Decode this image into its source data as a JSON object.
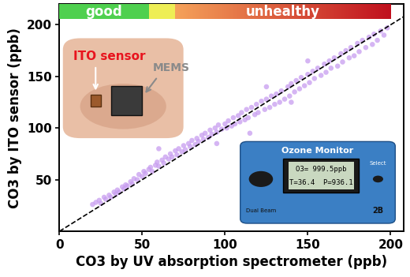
{
  "chart_data": {
    "type": "scatter",
    "x_label": "CO3 by UV absorption spectrometer (ppb)",
    "y_label": "CO3 by ITO sensor (ppb)",
    "xlim": [
      0,
      208
    ],
    "ylim": [
      0,
      220
    ],
    "xticks": [
      0,
      50,
      100,
      150,
      200
    ],
    "yticks": [
      50,
      100,
      150,
      200
    ],
    "color": "#c79cf0",
    "marker": "circle",
    "x": [
      20,
      22,
      24,
      25,
      27,
      28,
      30,
      31,
      33,
      34,
      35,
      36,
      38,
      39,
      40,
      41,
      43,
      44,
      45,
      47,
      48,
      50,
      51,
      52,
      54,
      55,
      56,
      58,
      59,
      60,
      62,
      63,
      64,
      66,
      67,
      68,
      70,
      71,
      72,
      74,
      75,
      76,
      78,
      79,
      80,
      82,
      83,
      84,
      86,
      87,
      88,
      90,
      91,
      92,
      94,
      95,
      96,
      98,
      100,
      101,
      102,
      104,
      105,
      106,
      108,
      109,
      110,
      112,
      113,
      114,
      116,
      118,
      119,
      120,
      122,
      124,
      125,
      127,
      128,
      130,
      131,
      133,
      134,
      136,
      138,
      139,
      140,
      142,
      143,
      145,
      146,
      148,
      150,
      151,
      153,
      154,
      156,
      158,
      160,
      161,
      163,
      164,
      166,
      168,
      170,
      171,
      173,
      175,
      176,
      178,
      180,
      181,
      183,
      185,
      187,
      189,
      190,
      192,
      194,
      196,
      198,
      60,
      95,
      125,
      115,
      150,
      140
    ],
    "y": [
      26,
      28,
      30,
      27,
      33,
      31,
      35,
      33,
      38,
      36,
      40,
      38,
      43,
      41,
      45,
      44,
      48,
      46,
      51,
      50,
      55,
      53,
      58,
      56,
      60,
      62,
      58,
      64,
      67,
      63,
      69,
      66,
      72,
      70,
      75,
      72,
      78,
      74,
      80,
      77,
      83,
      79,
      85,
      82,
      88,
      84,
      90,
      87,
      93,
      89,
      95,
      91,
      98,
      94,
      100,
      96,
      103,
      99,
      104,
      100,
      107,
      102,
      110,
      104,
      112,
      106,
      115,
      108,
      118,
      110,
      120,
      113,
      123,
      115,
      126,
      118,
      128,
      120,
      131,
      123,
      133,
      125,
      136,
      128,
      140,
      131,
      143,
      135,
      146,
      138,
      149,
      141,
      152,
      144,
      155,
      148,
      158,
      151,
      162,
      154,
      165,
      158,
      168,
      160,
      172,
      164,
      175,
      168,
      178,
      170,
      182,
      174,
      185,
      178,
      188,
      181,
      191,
      185,
      194,
      190,
      197,
      80,
      85,
      140,
      95,
      165,
      125
    ],
    "reference_line": {
      "x": [
        0,
        208
      ],
      "y": [
        0,
        208
      ],
      "line_style": "dashed",
      "color": "#000000"
    },
    "bands": [
      {
        "from": 0,
        "to": 54,
        "label": "good",
        "colors": [
          "#4fd04f"
        ]
      },
      {
        "from": 54,
        "to": 70,
        "colors": [
          "#eeee55"
        ]
      },
      {
        "from": 70,
        "to": 200,
        "label": "unhealthy",
        "colors": [
          "#f5a25a",
          "#c0101e"
        ]
      }
    ],
    "annotations": {
      "sensor_photo": {
        "ITO": "ITO sensor",
        "MEMS": "MEMS"
      },
      "monitor": {
        "title": "Ozone Monitor",
        "display": [
          "O3= 999.5ppb",
          "T=36.4  P=936.1"
        ],
        "left_button": "Dual Beam",
        "right_button": "Select",
        "logo": "2B"
      }
    }
  }
}
